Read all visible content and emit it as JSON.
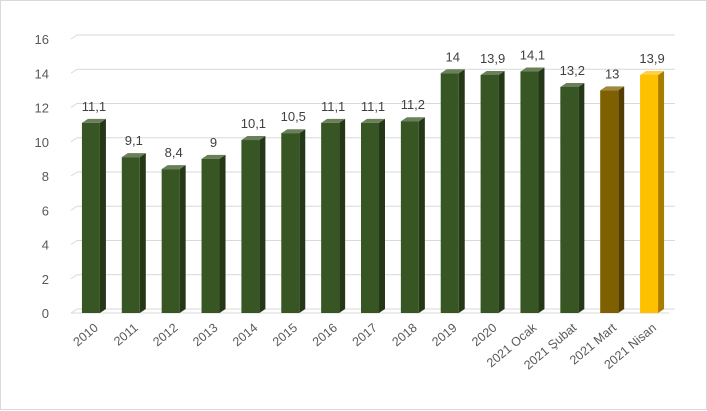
{
  "chart_data": {
    "type": "bar",
    "categories": [
      "2010",
      "2011",
      "2012",
      "2013",
      "2014",
      "2015",
      "2016",
      "2017",
      "2018",
      "2019",
      "2020",
      "2021 Ocak",
      "2021 Şubat",
      "2021 Mart",
      "2021 Nisan"
    ],
    "values": [
      11.1,
      9.1,
      8.4,
      9,
      10.1,
      10.5,
      11.1,
      11.1,
      11.2,
      14,
      13.9,
      14.1,
      13.2,
      13,
      13.9
    ],
    "value_labels": [
      "11,1",
      "9,1",
      "8,4",
      "9",
      "10,1",
      "10,5",
      "11,1",
      "11,1",
      "11,2",
      "14",
      "13,9",
      "14,1",
      "13,2",
      "13",
      "13,9"
    ],
    "bar_colors": [
      "#375623",
      "#375623",
      "#375623",
      "#375623",
      "#375623",
      "#375623",
      "#375623",
      "#375623",
      "#375623",
      "#375623",
      "#375623",
      "#375623",
      "#375623",
      "#7F6000",
      "#FFC000"
    ],
    "ylim": [
      0,
      16
    ],
    "yticks": [
      0,
      2,
      4,
      6,
      8,
      10,
      12,
      14,
      16
    ],
    "grid": true,
    "legend": "none",
    "style": "3d-column"
  }
}
